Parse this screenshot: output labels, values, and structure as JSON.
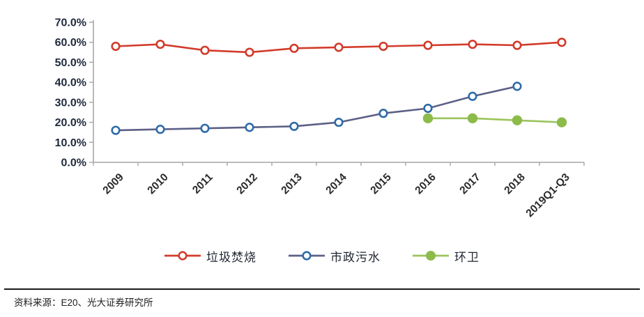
{
  "chart_data": {
    "type": "line",
    "title": "",
    "xlabel": "",
    "ylabel": "",
    "grid": false,
    "legend_position": "bottom",
    "ylim": [
      0,
      70
    ],
    "y_ticks": [
      {
        "value": 0,
        "label": "0.0%"
      },
      {
        "value": 10,
        "label": "10.0%"
      },
      {
        "value": 20,
        "label": "20.0%"
      },
      {
        "value": 30,
        "label": "30.0%"
      },
      {
        "value": 40,
        "label": "40.0%"
      },
      {
        "value": 50,
        "label": "50.0%"
      },
      {
        "value": 60,
        "label": "60.0%"
      },
      {
        "value": 70,
        "label": "70.0%"
      }
    ],
    "categories": [
      "2009",
      "2010",
      "2011",
      "2012",
      "2013",
      "2014",
      "2015",
      "2016",
      "2017",
      "2018",
      "2019Q1-Q3"
    ],
    "series": [
      {
        "id": "waste-incineration",
        "name": "垃圾焚烧",
        "values": [
          58,
          59,
          56,
          55,
          57,
          57.5,
          58,
          58.5,
          59,
          58.5,
          60
        ],
        "line_color": "#d23b2b",
        "marker": "open-circle",
        "marker_color": "#d23b2b"
      },
      {
        "id": "municipal-sewage",
        "name": "市政污水",
        "values": [
          16,
          16.5,
          17,
          17.5,
          18,
          20,
          24.5,
          27,
          33,
          38,
          null
        ],
        "line_color": "#5c6087",
        "marker": "open-circle",
        "marker_color": "#2e6ba8"
      },
      {
        "id": "sanitation",
        "name": "环卫",
        "values": [
          null,
          null,
          null,
          null,
          null,
          null,
          null,
          22,
          22,
          21,
          20
        ],
        "line_color": "#9bc45c",
        "marker": "filled-circle",
        "marker_color": "#8cbb4a"
      }
    ],
    "colors": {
      "axis_line": "#a6a6a6",
      "y_tick_label": "#1f2a3c",
      "x_tick_label": "#2b2b2b"
    }
  },
  "footer": {
    "source_label": "资料来源：E20、光大证券研究所"
  }
}
